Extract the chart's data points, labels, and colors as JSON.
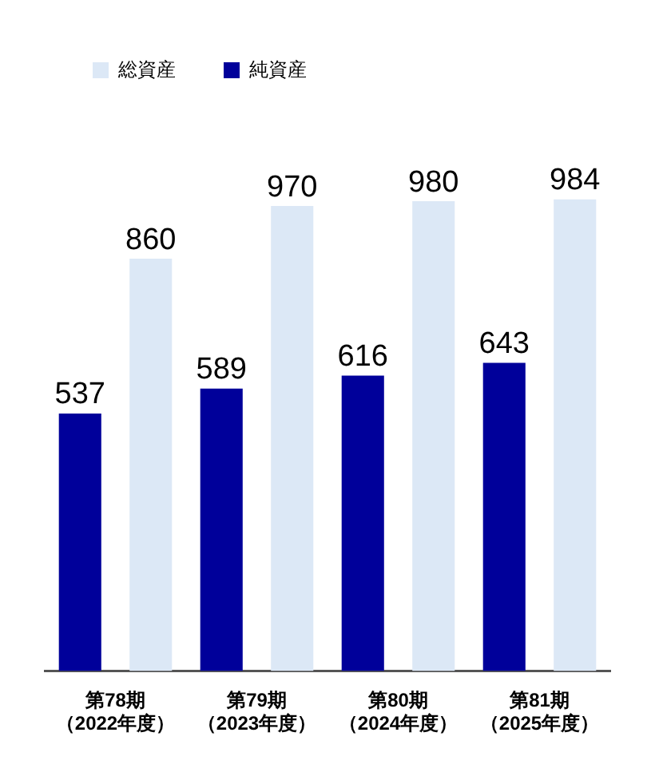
{
  "chart_data": {
    "type": "bar",
    "categories": [
      "第78期（2022年度）",
      "第79期（2023年度）",
      "第80期（2024年度）",
      "第81期（2025年度）"
    ],
    "series": [
      {
        "name": "純資産",
        "color": "#00009a",
        "values": [
          537,
          589,
          616,
          643
        ]
      },
      {
        "name": "総資産",
        "color": "#dce8f6",
        "values": [
          860,
          970,
          980,
          984
        ]
      }
    ],
    "data_labels": true,
    "legend": "top left",
    "grid": false
  }
}
